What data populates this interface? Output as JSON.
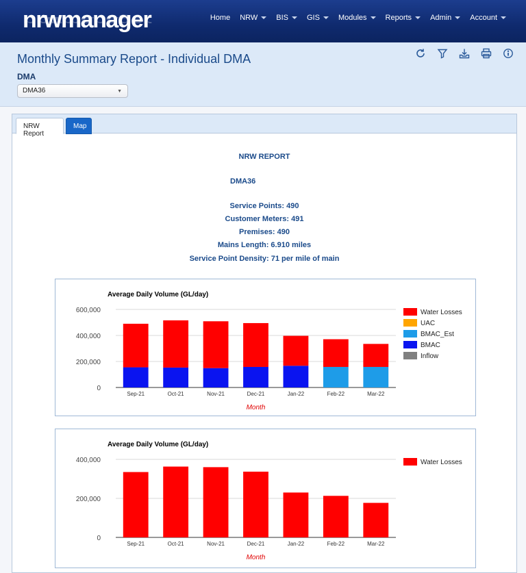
{
  "app": {
    "logo_text": "nrwmanager"
  },
  "nav": {
    "items": [
      {
        "label": "Home",
        "caret": false
      },
      {
        "label": "NRW",
        "caret": true
      },
      {
        "label": "BIS",
        "caret": true
      },
      {
        "label": "GIS",
        "caret": true
      },
      {
        "label": "Modules",
        "caret": true
      },
      {
        "label": "Reports",
        "caret": true
      },
      {
        "label": "Admin",
        "caret": true
      },
      {
        "label": "Account",
        "caret": true
      }
    ]
  },
  "header": {
    "title": "Monthly Summary Report - Individual DMA",
    "dma_label": "DMA",
    "dma_selected": "DMA36",
    "tools": [
      "refresh-icon",
      "filter-icon",
      "download-icon",
      "print-icon",
      "info-icon"
    ]
  },
  "tabs": {
    "report_label": "NRW Report",
    "map_label": "Map"
  },
  "report": {
    "title": "NRW REPORT",
    "dma": "DMA36",
    "service_points": "Service Points: 490",
    "customer_meters": "Customer Meters: 491",
    "premises": "Premises: 490",
    "mains_length": "Mains Length: 6.910 miles",
    "density": "Service Point Density: 71 per mile of main"
  },
  "colors": {
    "water_losses": "#ff0000",
    "uac": "#ffa500",
    "bmac_est": "#1e9ce8",
    "bmac": "#0a14f0",
    "inflow": "#808080"
  },
  "chart_data": [
    {
      "type": "bar",
      "stacked": true,
      "title": "Average Daily Volume (GL/day)",
      "xlabel": "Month",
      "ylabel": "",
      "categories": [
        "Sep-21",
        "Oct-21",
        "Nov-21",
        "Dec-21",
        "Jan-22",
        "Feb-22",
        "Mar-22"
      ],
      "ylim": [
        0,
        600000
      ],
      "yticks": [
        "0",
        "200,000",
        "400,000",
        "600,000"
      ],
      "legend_position": "right",
      "series": [
        {
          "name": "Water Losses",
          "color": "#ff0000",
          "values": [
            335000,
            363000,
            360000,
            337000,
            230000,
            213000,
            177000
          ]
        },
        {
          "name": "UAC",
          "color": "#ffa500",
          "values": [
            0,
            0,
            0,
            0,
            0,
            0,
            0
          ]
        },
        {
          "name": "BMAC_Est",
          "color": "#1e9ce8",
          "values": [
            0,
            0,
            0,
            0,
            0,
            158000,
            158000
          ]
        },
        {
          "name": "BMAC",
          "color": "#0a14f0",
          "values": [
            155000,
            153000,
            149000,
            158000,
            167000,
            0,
            0
          ]
        },
        {
          "name": "Inflow",
          "color": "#808080",
          "values": [
            0,
            0,
            0,
            0,
            0,
            0,
            0
          ]
        }
      ]
    },
    {
      "type": "bar",
      "title": "Average Daily Volume (GL/day)",
      "xlabel": "Month",
      "ylabel": "",
      "categories": [
        "Sep-21",
        "Oct-21",
        "Nov-21",
        "Dec-21",
        "Jan-22",
        "Feb-22",
        "Mar-22"
      ],
      "ylim": [
        0,
        400000
      ],
      "yticks": [
        "0",
        "200,000",
        "400,000"
      ],
      "legend_position": "right",
      "series": [
        {
          "name": "Water Losses",
          "color": "#ff0000",
          "values": [
            335000,
            363000,
            360000,
            337000,
            230000,
            213000,
            177000
          ]
        }
      ]
    }
  ]
}
